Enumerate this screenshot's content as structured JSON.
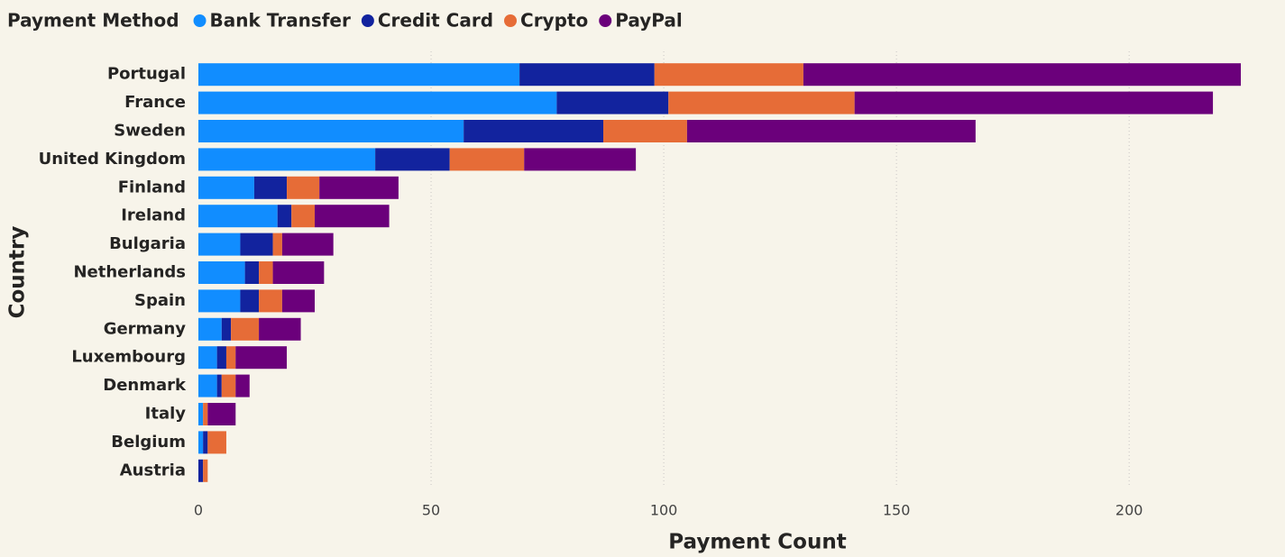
{
  "chart_data": {
    "type": "stacked-bar-horizontal",
    "legend_title": "Payment Method",
    "x_label": "Payment Count",
    "y_label": "Country",
    "categories": [
      "Portugal",
      "France",
      "Sweden",
      "United Kingdom",
      "Finland",
      "Ireland",
      "Bulgaria",
      "Netherlands",
      "Spain",
      "Germany",
      "Luxembourg",
      "Denmark",
      "Italy",
      "Belgium",
      "Austria"
    ],
    "series": [
      {
        "name": "Bank Transfer",
        "color": "#118dff",
        "values": [
          69,
          77,
          57,
          38,
          12,
          17,
          9,
          10,
          9,
          5,
          4,
          4,
          1,
          1,
          0
        ]
      },
      {
        "name": "Credit Card",
        "color": "#12239e",
        "values": [
          29,
          24,
          30,
          16,
          7,
          3,
          7,
          3,
          4,
          2,
          2,
          1,
          0,
          1,
          1
        ]
      },
      {
        "name": "Crypto",
        "color": "#e66c37",
        "values": [
          32,
          40,
          18,
          16,
          7,
          5,
          2,
          3,
          5,
          6,
          2,
          3,
          1,
          4,
          1
        ]
      },
      {
        "name": "PayPal",
        "color": "#6b007b",
        "values": [
          94,
          77,
          62,
          24,
          17,
          16,
          11,
          11,
          7,
          9,
          11,
          3,
          6,
          0,
          0
        ]
      }
    ],
    "xlim": [
      0,
      230
    ],
    "xticks": [
      0,
      50,
      100,
      150,
      200
    ],
    "grid": true,
    "legend_position": "top-left"
  }
}
